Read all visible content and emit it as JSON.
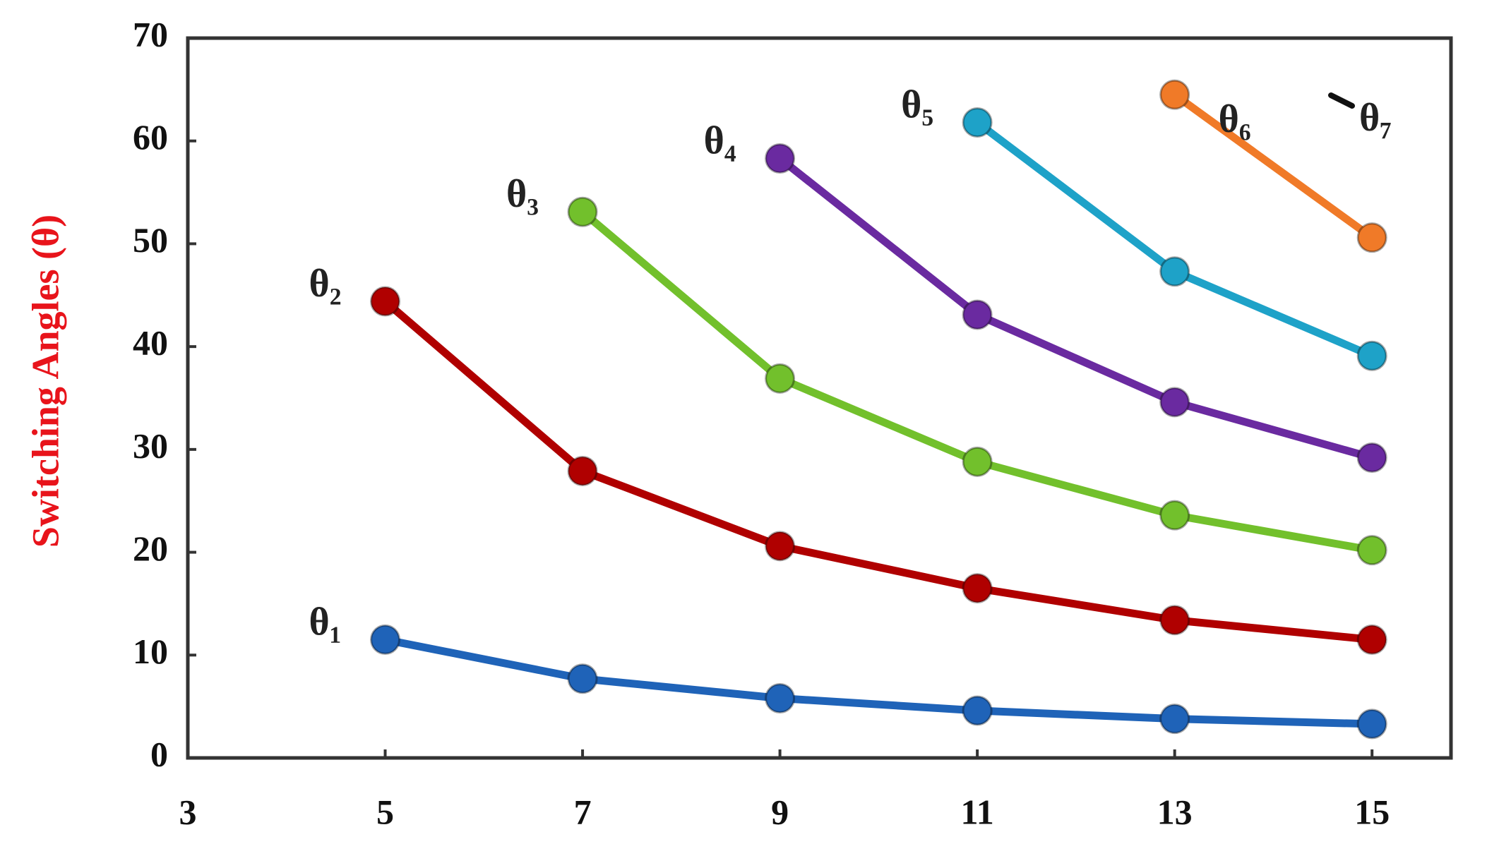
{
  "chart_data": {
    "type": "line",
    "y_label": "Switching Angles (θ)",
    "x": [
      5,
      7,
      9,
      11,
      13,
      15
    ],
    "xlim": [
      3,
      15.8
    ],
    "xticks": [
      3,
      5,
      7,
      9,
      11,
      13,
      15
    ],
    "ylim": [
      0,
      70
    ],
    "yticks": [
      0,
      10,
      20,
      30,
      40,
      50,
      60,
      70
    ],
    "grid": false,
    "series": [
      {
        "name": "θ₁",
        "color": "#1f63b8",
        "values": [
          11.5,
          7.7,
          5.8,
          4.6,
          3.8,
          3.3
        ]
      },
      {
        "name": "θ₂",
        "color": "#b00000",
        "values": [
          44.4,
          27.9,
          20.6,
          16.5,
          13.4,
          11.5
        ]
      },
      {
        "name": "θ₃",
        "color": "#72c02c",
        "values": [
          null,
          53.1,
          36.9,
          28.8,
          23.6,
          20.2
        ]
      },
      {
        "name": "θ₄",
        "color": "#6a2aa0",
        "values": [
          null,
          null,
          58.3,
          43.1,
          34.6,
          29.2
        ]
      },
      {
        "name": "θ₅",
        "color": "#1ea2c8",
        "values": [
          null,
          null,
          null,
          61.8,
          47.3,
          39.1
        ]
      },
      {
        "name": "θ₆",
        "color": "#f07a28",
        "values": [
          null,
          null,
          null,
          null,
          64.5,
          50.6
        ]
      }
    ],
    "annotation": "θ₇"
  }
}
